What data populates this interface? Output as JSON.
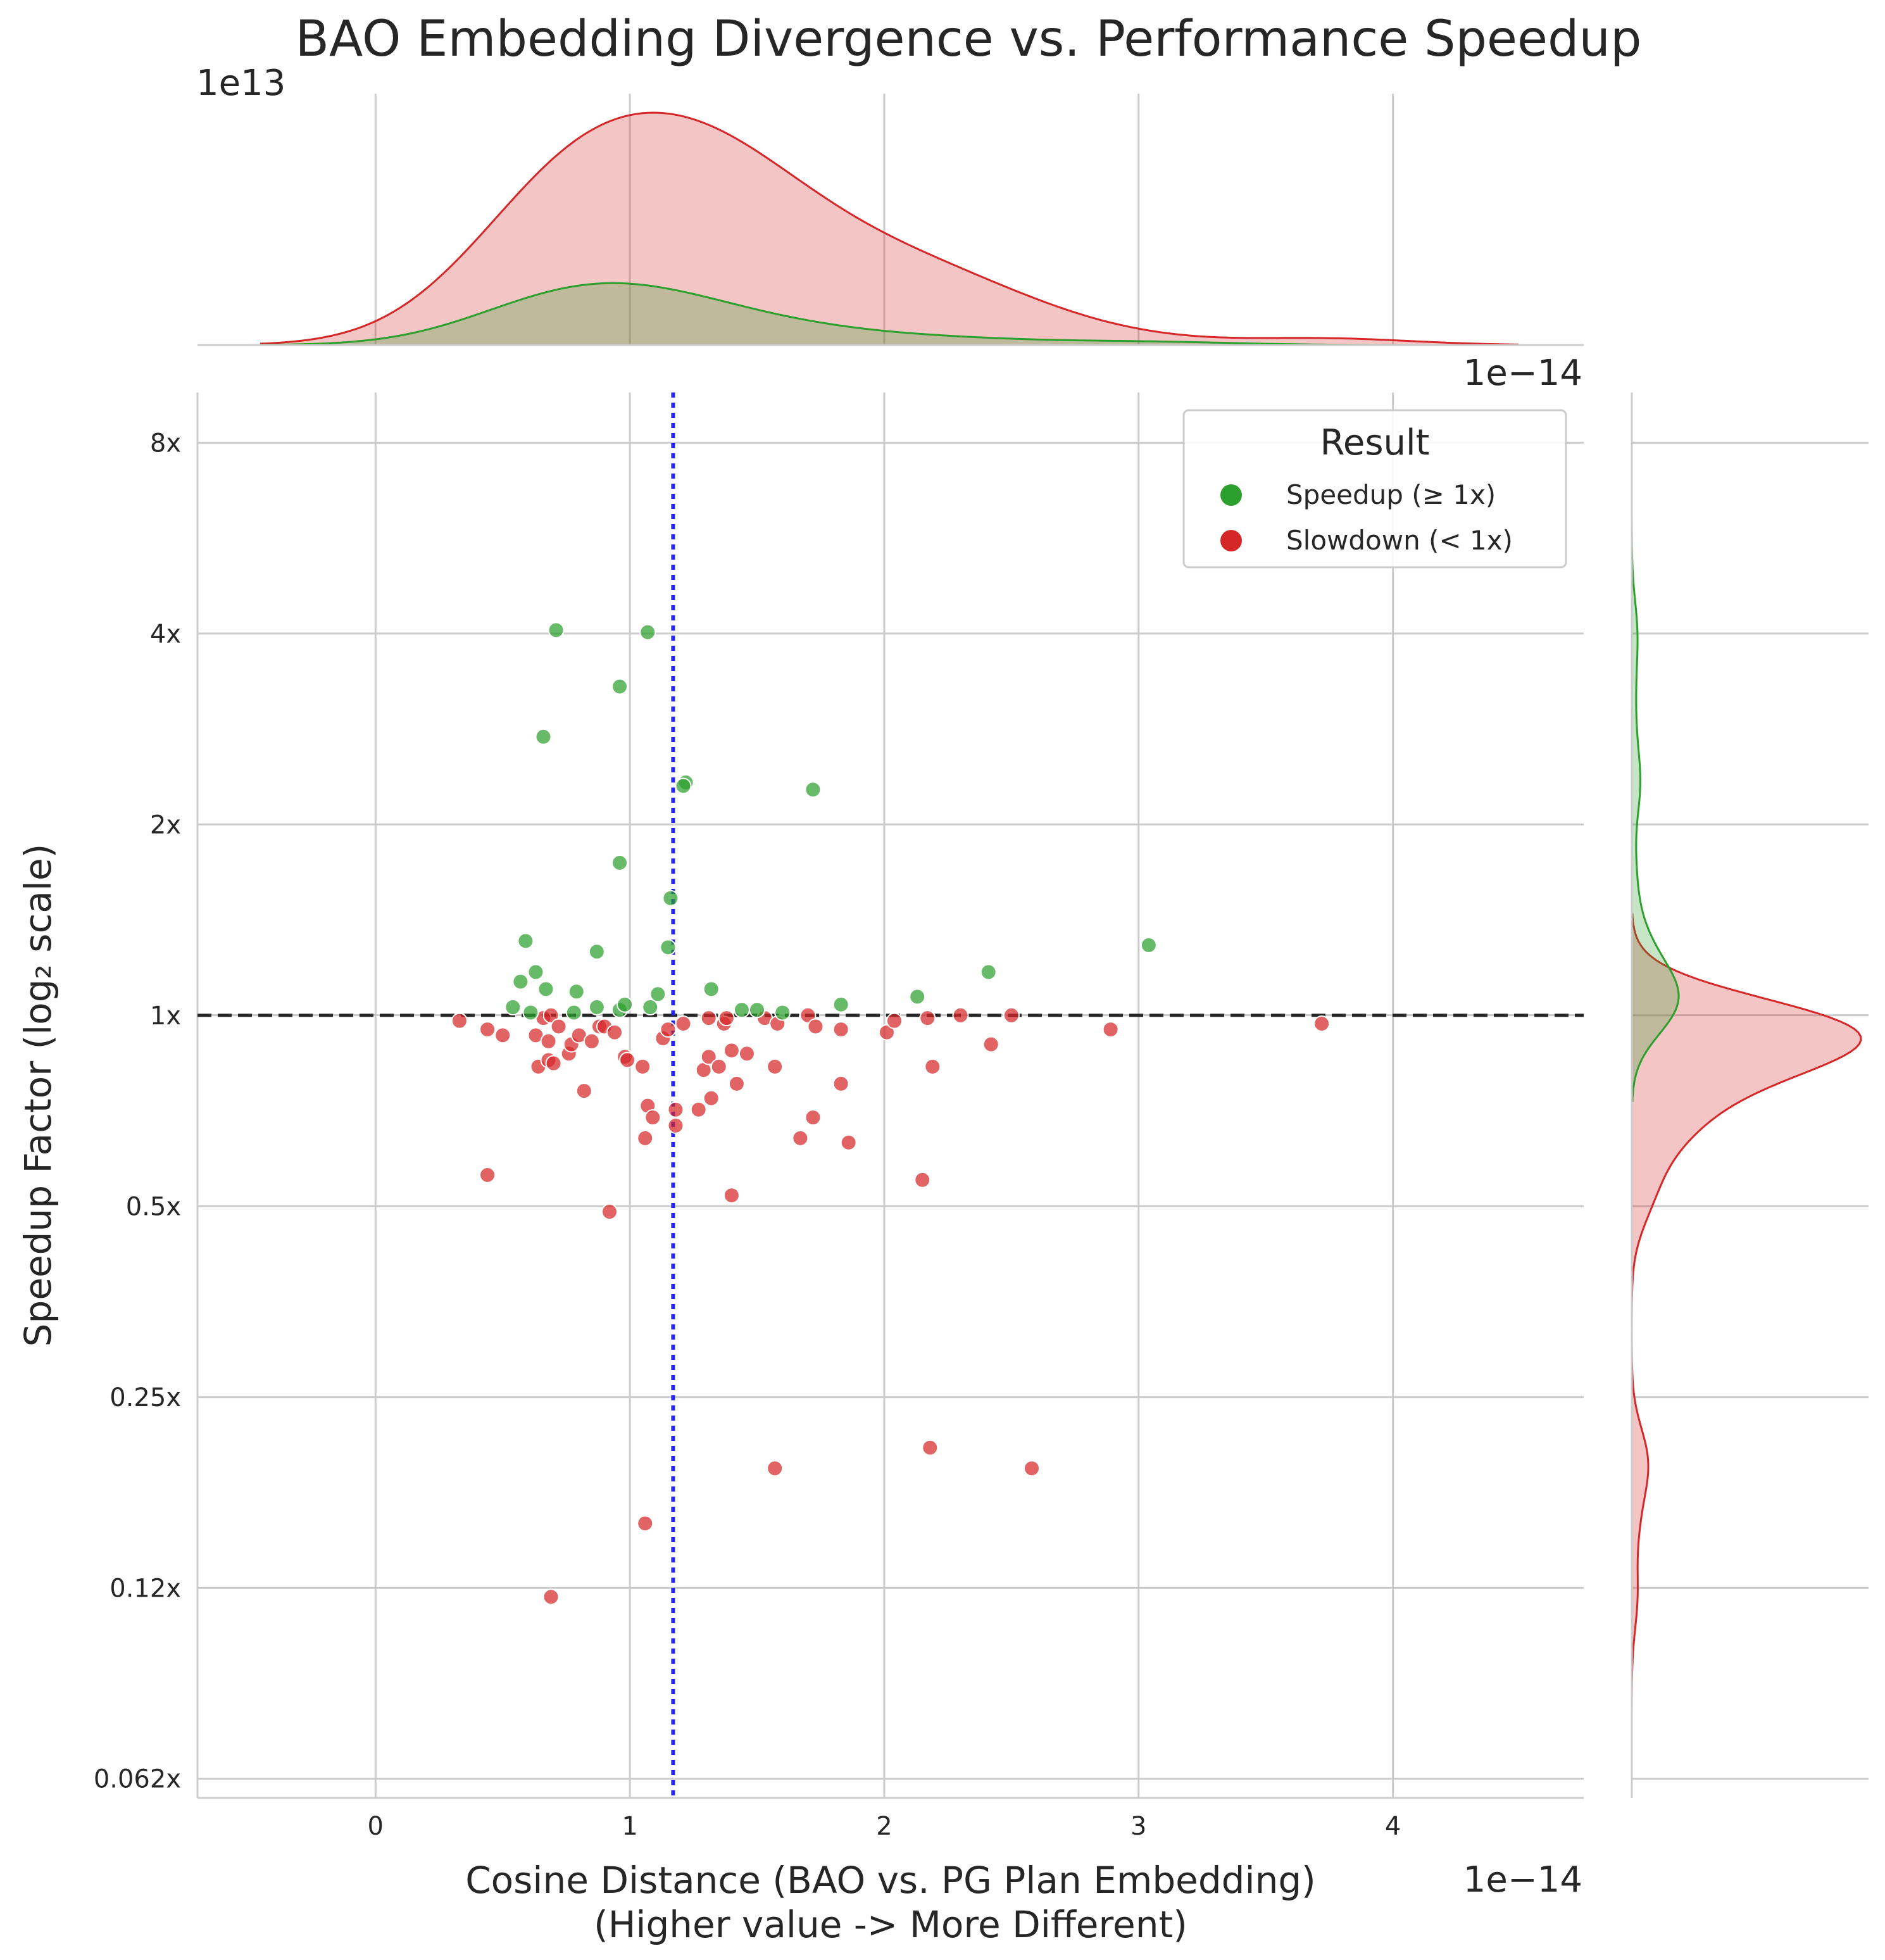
{
  "chart_data": {
    "type": "scatter",
    "title": "BAO Embedding Divergence vs. Performance Speedup",
    "xlabel_line1": "Cosine Distance (BAO vs. PG Plan Embedding)",
    "xlabel_line2": "(Higher value -> More Different)",
    "ylabel": "Speedup Factor (log₂ scale)",
    "x_offset_label": "1e−14",
    "top_marginal_offset_label": "1e13",
    "top_marginal_xaxis_offset_label": "1e−14",
    "x_scale_exponent": -14,
    "xlim": [
      -0.7,
      4.75
    ],
    "x_ticks": [
      0,
      1,
      2,
      3,
      4
    ],
    "y_scale": "log2",
    "ylim": [
      0.0583,
      9.6
    ],
    "y_ticks": [
      {
        "value": 8,
        "label": "8x"
      },
      {
        "value": 4,
        "label": "4x"
      },
      {
        "value": 2,
        "label": "2x"
      },
      {
        "value": 1,
        "label": "1x"
      },
      {
        "value": 0.5,
        "label": "0.5x"
      },
      {
        "value": 0.25,
        "label": "0.25x"
      },
      {
        "value": 0.125,
        "label": "0.12x"
      },
      {
        "value": 0.0625,
        "label": "0.062x"
      }
    ],
    "grid": true,
    "reference_lines": [
      {
        "orientation": "horizontal",
        "value": 1,
        "style": "dashed",
        "color": "#262626"
      },
      {
        "orientation": "vertical",
        "value": 1.17,
        "style": "dotted",
        "color": "#2222ee"
      }
    ],
    "legend": {
      "title": "Result",
      "placement": "top-right",
      "entries": [
        {
          "label": "Speedup (≥ 1x)",
          "color": "#2ca02c"
        },
        {
          "label": "Slowdown (< 1x)",
          "color": "#d62728"
        }
      ]
    },
    "series": [
      {
        "color": "#2ca02c",
        "points": [
          [
            0.71,
            4.05
          ],
          [
            1.07,
            4.02
          ],
          [
            0.96,
            3.3
          ],
          [
            0.66,
            2.75
          ],
          [
            1.22,
            2.33
          ],
          [
            1.21,
            2.3
          ],
          [
            1.72,
            2.27
          ],
          [
            0.96,
            1.74
          ],
          [
            1.16,
            1.53
          ],
          [
            0.59,
            1.31
          ],
          [
            1.15,
            1.28
          ],
          [
            3.04,
            1.29
          ],
          [
            0.87,
            1.26
          ],
          [
            0.63,
            1.17
          ],
          [
            2.41,
            1.17
          ],
          [
            0.57,
            1.13
          ],
          [
            0.67,
            1.1
          ],
          [
            0.79,
            1.09
          ],
          [
            1.32,
            1.1
          ],
          [
            1.11,
            1.08
          ],
          [
            2.13,
            1.07
          ],
          [
            0.54,
            1.03
          ],
          [
            0.61,
            1.01
          ],
          [
            0.78,
            1.01
          ],
          [
            0.87,
            1.03
          ],
          [
            0.96,
            1.02
          ],
          [
            0.98,
            1.04
          ],
          [
            1.08,
            1.03
          ],
          [
            1.44,
            1.02
          ],
          [
            1.5,
            1.02
          ],
          [
            1.6,
            1.01
          ],
          [
            1.83,
            1.04
          ]
        ]
      },
      {
        "color": "#d62728",
        "points": [
          [
            0.33,
            0.98
          ],
          [
            0.44,
            0.95
          ],
          [
            0.5,
            0.93
          ],
          [
            0.63,
            0.93
          ],
          [
            0.66,
            0.99
          ],
          [
            0.68,
            0.91
          ],
          [
            0.69,
            1.0
          ],
          [
            0.72,
            0.96
          ],
          [
            0.76,
            0.87
          ],
          [
            0.77,
            0.9
          ],
          [
            0.8,
            0.93
          ],
          [
            0.85,
            0.91
          ],
          [
            0.88,
            0.96
          ],
          [
            0.9,
            0.96
          ],
          [
            0.94,
            0.94
          ],
          [
            0.98,
            0.86
          ],
          [
            1.05,
            0.83
          ],
          [
            1.13,
            0.92
          ],
          [
            1.15,
            0.95
          ],
          [
            1.21,
            0.97
          ],
          [
            1.31,
            0.99
          ],
          [
            1.37,
            0.97
          ],
          [
            1.38,
            0.99
          ],
          [
            1.53,
            0.99
          ],
          [
            1.58,
            0.97
          ],
          [
            1.7,
            1.0
          ],
          [
            1.73,
            0.96
          ],
          [
            1.83,
            0.95
          ],
          [
            2.01,
            0.94
          ],
          [
            2.04,
            0.98
          ],
          [
            2.17,
            0.99
          ],
          [
            2.3,
            1.0
          ],
          [
            2.5,
            1.0
          ],
          [
            2.42,
            0.9
          ],
          [
            2.89,
            0.95
          ],
          [
            3.72,
            0.97
          ],
          [
            0.64,
            0.83
          ],
          [
            0.68,
            0.85
          ],
          [
            0.7,
            0.84
          ],
          [
            0.82,
            0.76
          ],
          [
            0.99,
            0.85
          ],
          [
            1.07,
            0.72
          ],
          [
            1.09,
            0.69
          ],
          [
            1.06,
            0.64
          ],
          [
            1.18,
            0.71
          ],
          [
            1.18,
            0.67
          ],
          [
            1.27,
            0.71
          ],
          [
            1.29,
            0.82
          ],
          [
            1.31,
            0.86
          ],
          [
            1.32,
            0.74
          ],
          [
            1.35,
            0.83
          ],
          [
            1.4,
            0.88
          ],
          [
            1.42,
            0.78
          ],
          [
            1.46,
            0.87
          ],
          [
            1.57,
            0.83
          ],
          [
            1.67,
            0.64
          ],
          [
            1.72,
            0.69
          ],
          [
            1.83,
            0.78
          ],
          [
            1.86,
            0.63
          ],
          [
            2.19,
            0.83
          ],
          [
            0.44,
            0.56
          ],
          [
            1.4,
            0.52
          ],
          [
            2.15,
            0.55
          ],
          [
            0.92,
            0.49
          ],
          [
            1.57,
            0.193
          ],
          [
            2.18,
            0.208
          ],
          [
            2.58,
            0.193
          ],
          [
            1.06,
            0.158
          ],
          [
            0.69,
            0.121
          ]
        ]
      }
    ]
  }
}
